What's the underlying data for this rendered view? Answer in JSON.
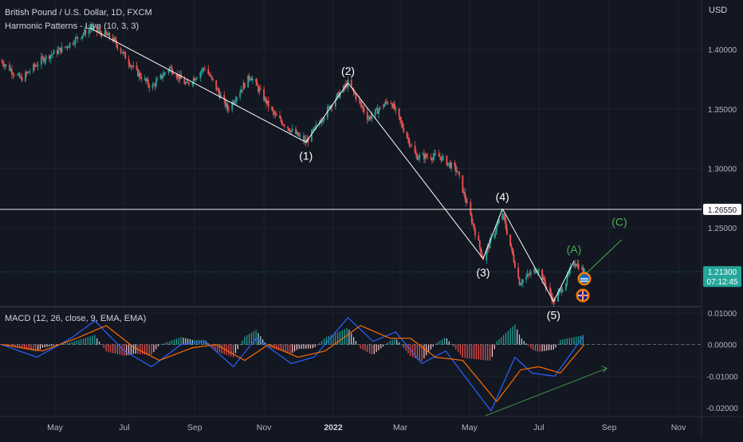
{
  "header": {
    "symbol": "British Pound / U.S. Dollar, 1D, FXCM",
    "indicator": "Harmonic Patterns - Live (10, 3, 3)",
    "macd_label": "MACD (12, 26, close, 9, EMA, EMA)"
  },
  "chart_data": {
    "type": "candlestick",
    "currency": "USD",
    "y_ticks": [
      "1.40000",
      "1.35000",
      "1.30000",
      "1.25000"
    ],
    "ylim": [
      1.185,
      1.435
    ],
    "x_ticks": [
      "May",
      "Jul",
      "Sep",
      "Nov",
      "2022",
      "Mar",
      "May",
      "Jul",
      "Sep",
      "Nov"
    ],
    "x_tick_dates": [
      "2021-05",
      "2021-07",
      "2021-09",
      "2021-11",
      "2022-01",
      "2022-03",
      "2022-05",
      "2022-07",
      "2022-09",
      "2022-11"
    ],
    "price_path": [
      [
        "2021-03-15",
        1.39
      ],
      [
        "2021-04-01",
        1.375
      ],
      [
        "2021-04-20",
        1.392
      ],
      [
        "2021-05-10",
        1.402
      ],
      [
        "2021-06-01",
        1.418
      ],
      [
        "2021-06-20",
        1.41
      ],
      [
        "2021-07-10",
        1.383
      ],
      [
        "2021-07-25",
        1.368
      ],
      [
        "2021-08-10",
        1.385
      ],
      [
        "2021-08-25",
        1.37
      ],
      [
        "2021-09-10",
        1.385
      ],
      [
        "2021-09-30",
        1.35
      ],
      [
        "2021-10-20",
        1.378
      ],
      [
        "2021-11-10",
        1.345
      ],
      [
        "2021-11-25",
        1.332
      ],
      [
        "2021-12-08",
        1.322
      ],
      [
        "2021-12-31",
        1.355
      ],
      [
        "2022-01-14",
        1.372
      ],
      [
        "2022-02-01",
        1.342
      ],
      [
        "2022-02-20",
        1.358
      ],
      [
        "2022-03-15",
        1.31
      ],
      [
        "2022-04-05",
        1.31
      ],
      [
        "2022-04-20",
        1.298
      ],
      [
        "2022-05-13",
        1.224
      ],
      [
        "2022-05-30",
        1.262
      ],
      [
        "2022-06-14",
        1.204
      ],
      [
        "2022-06-30",
        1.216
      ],
      [
        "2022-07-14",
        1.188
      ],
      [
        "2022-07-25",
        1.205
      ],
      [
        "2022-08-01",
        1.222
      ],
      [
        "2022-08-10",
        1.213
      ]
    ],
    "wave_lines": [
      [
        [
          "2021-06-01",
          1.418
        ],
        [
          "2021-12-08",
          1.322
        ]
      ],
      [
        [
          "2021-12-08",
          1.322
        ],
        [
          "2022-01-14",
          1.372
        ]
      ],
      [
        [
          "2022-01-14",
          1.372
        ],
        [
          "2022-05-13",
          1.224
        ]
      ],
      [
        [
          "2022-05-13",
          1.224
        ],
        [
          "2022-05-30",
          1.266
        ]
      ],
      [
        [
          "2022-05-30",
          1.266
        ],
        [
          "2022-07-14",
          1.188
        ]
      ],
      [
        [
          "2022-07-14",
          1.188
        ],
        [
          "2022-08-01",
          1.222
        ]
      ]
    ],
    "wave_labels": [
      {
        "text": "(1)",
        "date": "2021-12-08",
        "price": 1.322,
        "pos": "below",
        "color": "#ffffff"
      },
      {
        "text": "(2)",
        "date": "2022-01-14",
        "price": 1.372,
        "pos": "above",
        "color": "#ffffff"
      },
      {
        "text": "(3)",
        "date": "2022-05-13",
        "price": 1.224,
        "pos": "below",
        "color": "#ffffff"
      },
      {
        "text": "(4)",
        "date": "2022-05-30",
        "price": 1.266,
        "pos": "above",
        "color": "#ffffff"
      },
      {
        "text": "(5)",
        "date": "2022-07-14",
        "price": 1.188,
        "pos": "below",
        "color": "#ffffff"
      },
      {
        "text": "(A)",
        "date": "2022-08-01",
        "price": 1.222,
        "pos": "above",
        "color": "#4caf50"
      },
      {
        "text": "(C)",
        "date": "2022-09-10",
        "price": 1.245,
        "pos": "above",
        "color": "#4caf50"
      }
    ],
    "projection_line": [
      [
        "2022-08-10",
        1.21
      ],
      [
        "2022-09-12",
        1.24
      ]
    ],
    "horizontal_levels": [
      {
        "price": 1.2655,
        "label": "1.26550",
        "color": "#ffffff"
      },
      {
        "price": 1.213,
        "label": "1.21300",
        "countdown": "07:12:45",
        "color": "#26a69a"
      }
    ],
    "macd": {
      "ylim": [
        -0.0225,
        0.0115
      ],
      "y_ticks": [
        "0.01000",
        "0.00000",
        "-0.01000",
        "-0.02000"
      ],
      "macd_path": [
        [
          "2021-03-15",
          0.0
        ],
        [
          "2021-04-15",
          -0.004
        ],
        [
          "2021-05-15",
          0.002
        ],
        [
          "2021-06-05",
          0.0075
        ],
        [
          "2021-07-01",
          -0.002
        ],
        [
          "2021-07-25",
          -0.007
        ],
        [
          "2021-08-20",
          0.0
        ],
        [
          "2021-09-10",
          0.001
        ],
        [
          "2021-10-05",
          -0.007
        ],
        [
          "2021-10-25",
          0.002
        ],
        [
          "2021-11-25",
          -0.006
        ],
        [
          "2021-12-15",
          -0.004
        ],
        [
          "2022-01-14",
          0.0085
        ],
        [
          "2022-02-05",
          0.001
        ],
        [
          "2022-02-25",
          0.004
        ],
        [
          "2022-03-20",
          -0.006
        ],
        [
          "2022-04-10",
          -0.002
        ],
        [
          "2022-05-01",
          -0.012
        ],
        [
          "2022-05-20",
          -0.021
        ],
        [
          "2022-06-10",
          -0.004
        ],
        [
          "2022-06-25",
          -0.009
        ],
        [
          "2022-07-15",
          -0.01
        ],
        [
          "2022-08-10",
          0.003
        ]
      ],
      "signal_path": [
        [
          "2021-03-15",
          0.0
        ],
        [
          "2021-04-20",
          -0.002
        ],
        [
          "2021-05-20",
          0.002
        ],
        [
          "2021-06-15",
          0.006
        ],
        [
          "2021-07-10",
          -0.001
        ],
        [
          "2021-08-01",
          -0.005
        ],
        [
          "2021-08-30",
          -0.001
        ],
        [
          "2021-09-20",
          0.0
        ],
        [
          "2021-10-15",
          -0.005
        ],
        [
          "2021-11-05",
          0.0
        ],
        [
          "2021-12-01",
          -0.004
        ],
        [
          "2021-12-25",
          -0.002
        ],
        [
          "2022-01-25",
          0.006
        ],
        [
          "2022-02-20",
          0.002
        ],
        [
          "2022-03-10",
          0.002
        ],
        [
          "2022-04-01",
          -0.004
        ],
        [
          "2022-04-25",
          -0.005
        ],
        [
          "2022-05-25",
          -0.018
        ],
        [
          "2022-06-15",
          -0.008
        ],
        [
          "2022-07-01",
          -0.007
        ],
        [
          "2022-07-20",
          -0.009
        ],
        [
          "2022-08-10",
          0.0
        ]
      ],
      "divergence_line": [
        [
          "2022-05-15",
          -0.0225
        ],
        [
          "2022-08-30",
          -0.0075
        ]
      ]
    }
  },
  "colors": {
    "background": "#131722",
    "bull": "#26a69a",
    "bear": "#ef5350",
    "macd_line": "#2962ff",
    "signal_line": "#ff6d00",
    "wave": "#ffffff",
    "projection": "#4caf50"
  }
}
